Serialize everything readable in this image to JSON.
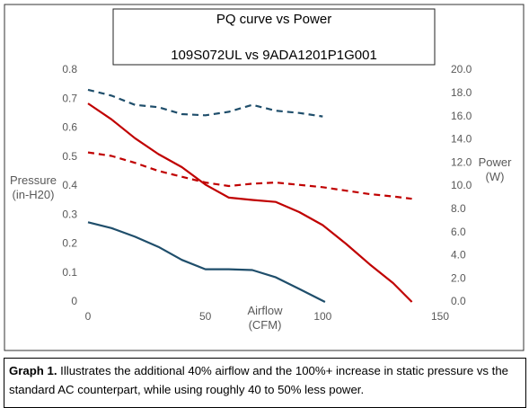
{
  "chart_data": {
    "type": "line",
    "title": "PQ curve vs Power",
    "subtitle": "109S072UL vs 9ADA1201P1G001",
    "x_label": "Airflow (CFM)",
    "y_label": "Pressure (in-H20)",
    "y2_label": "Power (W)",
    "xlim": [
      0,
      150
    ],
    "xticks": [
      0,
      50,
      100,
      150
    ],
    "ylim": [
      0,
      0.8
    ],
    "yticks": [
      0,
      0.1,
      0.2,
      0.3,
      0.4,
      0.5,
      0.6,
      0.7,
      0.8
    ],
    "y2lim": [
      0,
      20
    ],
    "y2ticks": [
      {
        "value": 0,
        "label": "0.0"
      },
      {
        "value": 2,
        "label": "2.0"
      },
      {
        "value": 4,
        "label": "4.0"
      },
      {
        "value": 6,
        "label": "6.0"
      },
      {
        "value": 8,
        "label": "8.0"
      },
      {
        "value": 10,
        "label": "10.0"
      },
      {
        "value": 12,
        "label": "12.0"
      },
      {
        "value": 14,
        "label": "14.0"
      },
      {
        "value": 16,
        "label": "16.0"
      },
      {
        "value": 18,
        "label": "18.0"
      },
      {
        "value": 20,
        "label": "20.0"
      }
    ],
    "grid": false,
    "series": [
      {
        "color": "#c00000",
        "dashed": false,
        "axis": "y",
        "x": [
          0,
          10,
          20,
          30,
          40,
          50,
          60,
          70,
          80,
          90,
          100,
          110,
          120,
          130,
          138
        ],
        "values": [
          0.685,
          0.63,
          0.565,
          0.51,
          0.465,
          0.405,
          0.36,
          0.352,
          0.345,
          0.31,
          0.265,
          0.2,
          0.13,
          0.065,
          0
        ]
      },
      {
        "color": "#1f4e6b",
        "dashed": false,
        "axis": "y",
        "x": [
          0,
          10,
          20,
          30,
          40,
          50,
          60,
          70,
          80,
          90,
          101
        ],
        "values": [
          0.275,
          0.255,
          0.225,
          0.19,
          0.145,
          0.113,
          0.113,
          0.11,
          0.085,
          0.045,
          0
        ]
      },
      {
        "color": "#1f4e6b",
        "dashed": true,
        "axis": "y2",
        "x": [
          0,
          10,
          20,
          30,
          40,
          50,
          60,
          70,
          80,
          90,
          100
        ],
        "values": [
          18.3,
          17.8,
          17.0,
          16.8,
          16.2,
          16.1,
          16.4,
          17.0,
          16.5,
          16.3,
          16.0
        ]
      },
      {
        "color": "#c00000",
        "dashed": true,
        "axis": "y2",
        "x": [
          0,
          10,
          20,
          30,
          40,
          50,
          60,
          70,
          80,
          90,
          100,
          110,
          120,
          130,
          138
        ],
        "values": [
          12.9,
          12.6,
          12.0,
          11.3,
          10.8,
          10.3,
          10.0,
          10.2,
          10.3,
          10.1,
          9.9,
          9.6,
          9.3,
          9.1,
          8.9
        ]
      }
    ]
  },
  "caption": {
    "label": "Graph 1.",
    "text": "Illustrates the additional 40% airflow and the 100%+ increase in static pressure vs the standard AC counterpart, while using roughly 40 to 50% less power."
  }
}
